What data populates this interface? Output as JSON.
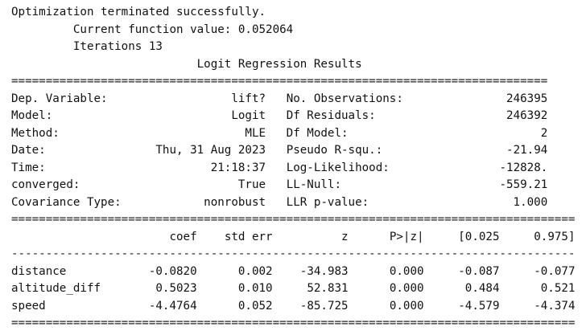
{
  "header": {
    "status": "Optimization terminated successfully.",
    "function_value_label": "Current function value:",
    "function_value": "0.052064",
    "iterations_label": "Iterations",
    "iterations": "13",
    "title": "Logit Regression Results"
  },
  "summary": {
    "left": [
      {
        "label": "Dep. Variable:",
        "value": "lift?"
      },
      {
        "label": "Model:",
        "value": "Logit"
      },
      {
        "label": "Method:",
        "value": "MLE"
      },
      {
        "label": "Date:",
        "value": "Thu, 31 Aug 2023"
      },
      {
        "label": "Time:",
        "value": "21:18:37"
      },
      {
        "label": "converged:",
        "value": "True"
      },
      {
        "label": "Covariance Type:",
        "value": "nonrobust"
      }
    ],
    "right": [
      {
        "label": "No. Observations:",
        "value": "246395"
      },
      {
        "label": "Df Residuals:",
        "value": "246392"
      },
      {
        "label": "Df Model:",
        "value": "2"
      },
      {
        "label": "Pseudo R-squ.:",
        "value": "-21.94"
      },
      {
        "label": "Log-Likelihood:",
        "value": "-12828."
      },
      {
        "label": "LL-Null:",
        "value": "-559.21"
      },
      {
        "label": "LLR p-value:",
        "value": "1.000"
      }
    ]
  },
  "coef_table": {
    "columns": [
      "coef",
      "std err",
      "z",
      "P>|z|",
      "[0.025",
      "0.975]"
    ],
    "rows": [
      {
        "name": "distance",
        "values": [
          "-0.0820",
          "0.002",
          "-34.983",
          "0.000",
          "-0.087",
          "-0.077"
        ]
      },
      {
        "name": "altitude_diff",
        "values": [
          "0.5023",
          "0.010",
          "52.831",
          "0.000",
          "0.484",
          "0.521"
        ]
      },
      {
        "name": "speed",
        "values": [
          "-4.4764",
          "0.052",
          "-85.725",
          "0.000",
          "-4.579",
          "-4.374"
        ]
      }
    ]
  }
}
